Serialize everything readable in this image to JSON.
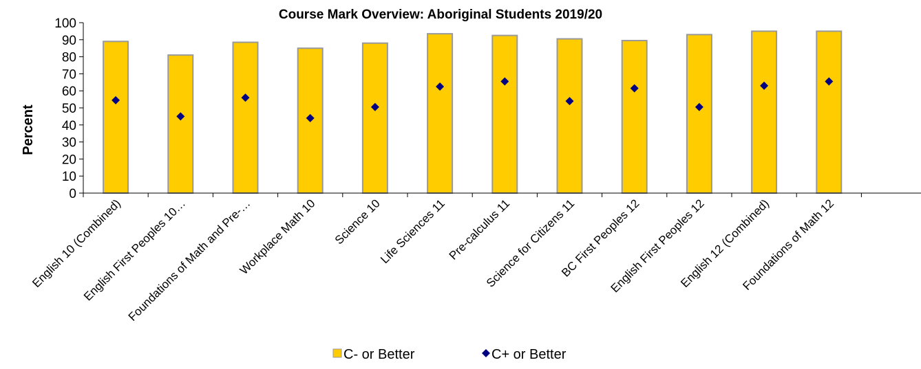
{
  "chart_data": {
    "type": "bar",
    "title": "Course Mark Overview: Aboriginal Students 2019/20",
    "ylabel": "Percent",
    "xlabel": "",
    "ylim": [
      0,
      100
    ],
    "yticks": [
      0,
      10,
      20,
      30,
      40,
      50,
      60,
      70,
      80,
      90,
      100
    ],
    "grid": false,
    "legend_position": "bottom",
    "categories": [
      "English 10 (Combined)",
      "English First Peoples 10…",
      "Foundations of Math and Pre-…",
      "Workplace Math 10",
      "Science 10",
      "Life Sciences 11",
      "Pre-calculus 11",
      "Science for Citizens 11",
      "BC First Peoples 12",
      "English First Peoples 12",
      "English 12 (Combined)",
      "Foundations of Math 12"
    ],
    "series": [
      {
        "name": "C- or Better",
        "type": "bar",
        "color": "#FFCC00",
        "border_color": "#999999",
        "values": [
          89,
          81,
          88.5,
          85,
          88,
          93.5,
          92.5,
          90.5,
          89.5,
          93,
          95,
          95
        ]
      },
      {
        "name": "C+ or Better",
        "type": "scatter",
        "marker": "diamond",
        "color": "#000080",
        "values": [
          54.5,
          45,
          56,
          44,
          50.5,
          62.5,
          65.5,
          54,
          61.5,
          50.5,
          63,
          65.5
        ]
      }
    ]
  }
}
